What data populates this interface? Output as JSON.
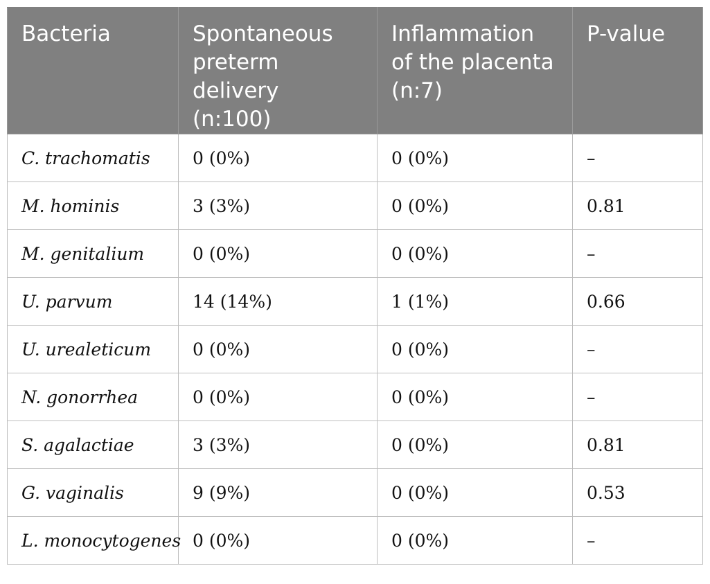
{
  "table": {
    "headers": [
      "Bacteria",
      "Spontaneous preterm delivery (n:100)",
      "Inflammation of the placenta (n:7)",
      "P-value"
    ],
    "rows": [
      [
        "C. trachomatis",
        "0 (0%)",
        "0 (0%)",
        "–"
      ],
      [
        "M. hominis",
        "3 (3%)",
        "0 (0%)",
        "0.81"
      ],
      [
        "M. genitalium",
        "0 (0%)",
        "0 (0%)",
        "–"
      ],
      [
        "U. parvum",
        "14 (14%)",
        "1 (1%)",
        "0.66"
      ],
      [
        "U. urealeticum",
        "0 (0%)",
        "0 (0%)",
        "–"
      ],
      [
        "N. gonorrhea",
        "0 (0%)",
        "0 (0%)",
        "–"
      ],
      [
        "S. agalactiae",
        "3 (3%)",
        "0 (0%)",
        "0.81"
      ],
      [
        "G. vaginalis",
        "9 (9%)",
        "0 (0%)",
        "0.53"
      ],
      [
        "L. monocytogenes",
        "0 (0%)",
        "0 (0%)",
        "–"
      ]
    ]
  }
}
